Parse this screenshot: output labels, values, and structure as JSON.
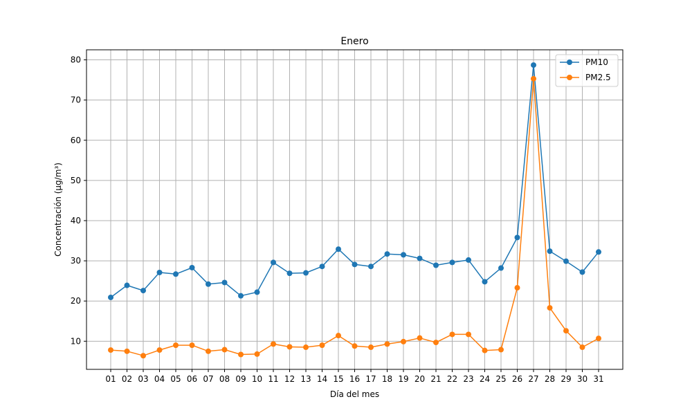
{
  "chart_data": {
    "type": "line",
    "title": "Enero",
    "xlabel": "Día del mes",
    "ylabel": "Concentración (µg/m³)",
    "categories": [
      "01",
      "02",
      "03",
      "04",
      "05",
      "06",
      "07",
      "08",
      "09",
      "10",
      "11",
      "12",
      "13",
      "14",
      "15",
      "16",
      "17",
      "18",
      "19",
      "20",
      "21",
      "22",
      "23",
      "24",
      "25",
      "26",
      "27",
      "28",
      "29",
      "30",
      "31"
    ],
    "ylim": [
      3,
      82.5
    ],
    "yticks": [
      10,
      20,
      30,
      40,
      50,
      60,
      70,
      80
    ],
    "grid": true,
    "legend_position": "top-right",
    "series": [
      {
        "name": "PM10",
        "color": "#1f77b4",
        "values": [
          20.9,
          23.9,
          22.6,
          27.1,
          26.7,
          28.3,
          24.2,
          24.6,
          21.3,
          22.2,
          29.6,
          26.9,
          27.0,
          28.6,
          32.9,
          29.1,
          28.6,
          31.7,
          31.5,
          30.6,
          28.9,
          29.6,
          30.2,
          24.8,
          28.2,
          35.8,
          78.7,
          32.4,
          29.9,
          27.2,
          32.2
        ]
      },
      {
        "name": "PM2.5",
        "color": "#ff7f0e",
        "values": [
          7.8,
          7.5,
          6.4,
          7.8,
          9.0,
          9.0,
          7.5,
          7.9,
          6.7,
          6.8,
          9.3,
          8.6,
          8.5,
          9.0,
          11.4,
          8.8,
          8.5,
          9.3,
          9.9,
          10.8,
          9.7,
          11.7,
          11.7,
          7.7,
          7.9,
          23.3,
          75.3,
          18.3,
          12.6,
          8.5,
          10.7
        ]
      }
    ]
  }
}
